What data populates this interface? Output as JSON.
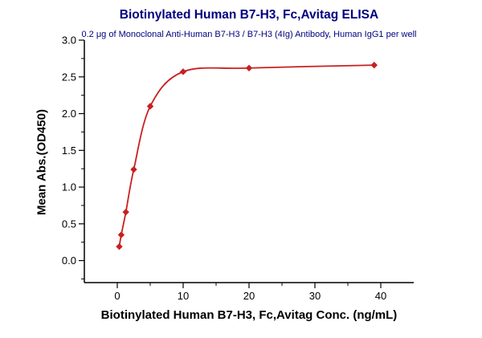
{
  "chart_data": {
    "type": "scatter",
    "curve": "smooth-fit-line",
    "title": "Biotinylated Human B7-H3, Fc,Avitag ELISA",
    "subtitle": "0.2 μg of Monoclonal Anti-Human B7-H3 / B7-H3 (4Ig) Antibody, Human IgG1 per well",
    "xlabel": "Biotinylated Human B7-H3, Fc,Avitag Conc. (ng/mL)",
    "ylabel": "Mean Abs.(OD450)",
    "x": [
      0.3,
      0.6,
      1.3,
      2.5,
      5,
      10,
      20,
      39
    ],
    "y": [
      0.19,
      0.35,
      0.66,
      1.24,
      2.1,
      2.57,
      2.62,
      2.66
    ],
    "xlim": [
      -5,
      45
    ],
    "ylim": [
      -0.3,
      3.0
    ],
    "x_ticks": [
      0,
      10,
      20,
      30,
      40
    ],
    "x_tick_labels": [
      "0",
      "10",
      "20",
      "30",
      "40"
    ],
    "y_ticks": [
      0.0,
      0.5,
      1.0,
      1.5,
      2.0,
      2.5,
      3.0
    ],
    "y_tick_labels": [
      "0.0",
      "0.5",
      "1.0",
      "1.5",
      "2.0",
      "2.5",
      "3.0"
    ],
    "x_minor_step": 5,
    "y_minor_step": 0.25,
    "grid": false,
    "legend": null,
    "marker": "diamond",
    "series_color": "#c8201f",
    "title_color": "#000080",
    "axis_color": "#000000"
  }
}
